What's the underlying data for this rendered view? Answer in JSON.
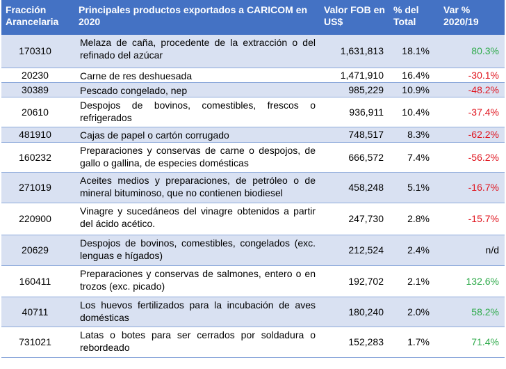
{
  "colors": {
    "header_bg": "#4472c4",
    "row_shade": "#d9e1f2",
    "positive": "#2eaa4a",
    "negative": "#e0141e"
  },
  "header": {
    "col1": "Fracción Arancelaria",
    "col2": "Principales productos exportados a CARICOM en 2020",
    "col3": "Valor FOB en US$",
    "col4": "% del Total",
    "col5": "Var % 2020/19"
  },
  "rows": [
    {
      "code": "170310",
      "description": "Melaza de caña, procedente de la extracción o del refinado del azúcar",
      "value": "1,631,813",
      "share": "18.1%",
      "change": "80.3%",
      "trend": "pos"
    },
    {
      "code": "20230",
      "description": "Carne de res deshuesada",
      "value": "1,471,910",
      "share": "16.4%",
      "change": "-30.1%",
      "trend": "neg"
    },
    {
      "code": "30389",
      "description": "Pescado congelado, nep",
      "value": "985,229",
      "share": "10.9%",
      "change": "-48.2%",
      "trend": "neg"
    },
    {
      "code": "20610",
      "description": "Despojos de bovinos, comestibles, frescos o refrigerados",
      "value": "936,911",
      "share": "10.4%",
      "change": "-37.4%",
      "trend": "neg"
    },
    {
      "code": "481910",
      "description": "Cajas de papel o cartón corrugado",
      "value": "748,517",
      "share": "8.3%",
      "change": "-62.2%",
      "trend": "neg"
    },
    {
      "code": "160232",
      "description": "Preparaciones y conservas de carne o despojos, de gallo o gallina, de especies domésticas",
      "value": "666,572",
      "share": "7.4%",
      "change": "-56.2%",
      "trend": "neg"
    },
    {
      "code": "271019",
      "description": "Aceites medios y preparaciones, de petróleo o de mineral bituminoso, que no contienen biodiesel",
      "value": "458,248",
      "share": "5.1%",
      "change": "-16.7%",
      "trend": "neg"
    },
    {
      "code": "220900",
      "description": "Vinagre y sucedáneos del vinagre obtenidos a partir del ácido acético.",
      "value": "247,730",
      "share": "2.8%",
      "change": "-15.7%",
      "trend": "neg"
    },
    {
      "code": "20629",
      "description": "Despojos de bovinos, comestibles, congelados (exc. lenguas e hígados)",
      "value": "212,524",
      "share": "2.4%",
      "change": "n/d",
      "trend": "na"
    },
    {
      "code": "160411",
      "description": "Preparaciones y conservas de salmones, entero o en trozos (exc. picado)",
      "value": "192,702",
      "share": "2.1%",
      "change": "132.6%",
      "trend": "pos"
    },
    {
      "code": "40711",
      "description": "Los huevos fertilizados para la incubación de aves domésticas",
      "value": "180,240",
      "share": "2.0%",
      "change": "58.2%",
      "trend": "pos"
    },
    {
      "code": "731021",
      "description": "Latas o botes para ser cerrados por soldadura o rebordeado",
      "value": "152,283",
      "share": "1.7%",
      "change": "71.4%",
      "trend": "pos"
    }
  ]
}
